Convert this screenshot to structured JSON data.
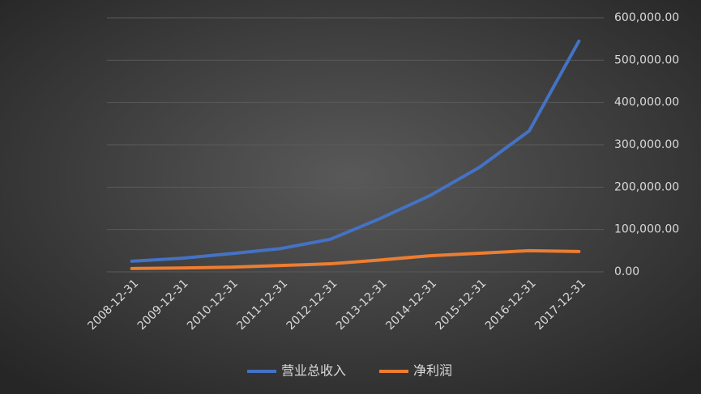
{
  "chart_data": {
    "type": "line",
    "categories": [
      "2008-12-31",
      "2009-12-31",
      "2010-12-31",
      "2011-12-31",
      "2012-12-31",
      "2013-12-31",
      "2014-12-31",
      "2015-12-31",
      "2016-12-31",
      "2017-12-31"
    ],
    "series": [
      {
        "name": "营业总收入",
        "color": "#4472c4",
        "values": [
          25000,
          32000,
          43000,
          55000,
          77000,
          126000,
          180000,
          247000,
          333000,
          545000
        ]
      },
      {
        "name": "净利润",
        "color": "#ed7d31",
        "values": [
          8000,
          9000,
          11000,
          15000,
          19000,
          28000,
          38000,
          44000,
          50000,
          48000
        ]
      }
    ],
    "ylim": [
      0,
      600000
    ],
    "yticks": [
      {
        "value": 0,
        "label": "0.00"
      },
      {
        "value": 100000,
        "label": "100,000.00"
      },
      {
        "value": 200000,
        "label": "200,000.00"
      },
      {
        "value": 300000,
        "label": "300,000.00"
      },
      {
        "value": 400000,
        "label": "400,000.00"
      },
      {
        "value": 500000,
        "label": "500,000.00"
      },
      {
        "value": 600000,
        "label": "600,000.00"
      }
    ],
    "grid": true,
    "legend": "bottom"
  }
}
